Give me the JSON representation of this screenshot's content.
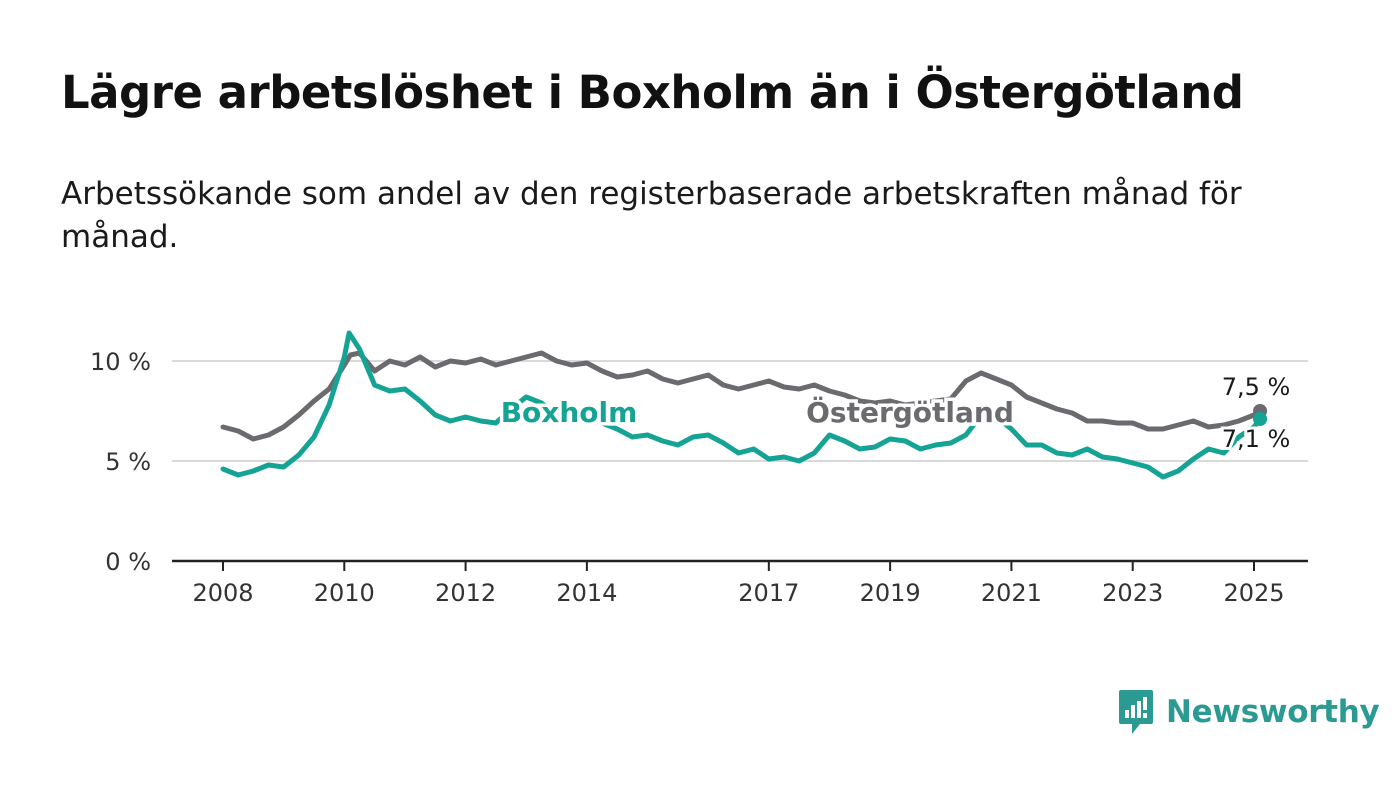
{
  "title": "Lägre arbetslöshet i Boxholm än i Östergötland",
  "subtitle": "Arbetssökande som andel av den registerbaserade arbetskraften månad för månad.",
  "brand": {
    "name": "Newsworthy",
    "icon": "newsworthy-logo-icon",
    "color": "#2a9a92"
  },
  "chart_data": {
    "type": "line",
    "title": "Lägre arbetslöshet i Boxholm än i Östergötland",
    "subtitle": "Arbetssökande som andel av den registerbaserade arbetskraften månad för månad.",
    "xlabel": "",
    "ylabel": "",
    "xlim": [
      2008,
      2025.35
    ],
    "ylim": [
      0,
      11.5
    ],
    "x_ticks": [
      {
        "value": 2008,
        "label": "2008"
      },
      {
        "value": 2010,
        "label": "2010"
      },
      {
        "value": 2012,
        "label": "2012"
      },
      {
        "value": 2014,
        "label": "2014"
      },
      {
        "value": 2017,
        "label": "2017"
      },
      {
        "value": 2019,
        "label": "2019"
      },
      {
        "value": 2021,
        "label": "2021"
      },
      {
        "value": 2023,
        "label": "2023"
      },
      {
        "value": 2025,
        "label": "2025"
      }
    ],
    "y_ticks": [
      {
        "value": 0,
        "label": "0 %"
      },
      {
        "value": 5,
        "label": "5 %"
      },
      {
        "value": 10,
        "label": "10 %"
      }
    ],
    "grid": true,
    "legend": "inline labels",
    "series": [
      {
        "name": "Östergötland",
        "color": "#6b6a6f",
        "end_label": "7,5 %",
        "points": [
          [
            2008.0,
            6.7
          ],
          [
            2008.25,
            6.5
          ],
          [
            2008.5,
            6.1
          ],
          [
            2008.75,
            6.3
          ],
          [
            2009.0,
            6.7
          ],
          [
            2009.25,
            7.3
          ],
          [
            2009.5,
            8.0
          ],
          [
            2009.75,
            8.6
          ],
          [
            2010.0,
            9.8
          ],
          [
            2010.1,
            10.3
          ],
          [
            2010.25,
            10.4
          ],
          [
            2010.5,
            9.5
          ],
          [
            2010.75,
            10.0
          ],
          [
            2011.0,
            9.8
          ],
          [
            2011.25,
            10.2
          ],
          [
            2011.5,
            9.7
          ],
          [
            2011.75,
            10.0
          ],
          [
            2012.0,
            9.9
          ],
          [
            2012.25,
            10.1
          ],
          [
            2012.5,
            9.8
          ],
          [
            2012.75,
            10.0
          ],
          [
            2013.0,
            10.2
          ],
          [
            2013.25,
            10.4
          ],
          [
            2013.5,
            10.0
          ],
          [
            2013.75,
            9.8
          ],
          [
            2014.0,
            9.9
          ],
          [
            2014.25,
            9.5
          ],
          [
            2014.5,
            9.2
          ],
          [
            2014.75,
            9.3
          ],
          [
            2015.0,
            9.5
          ],
          [
            2015.25,
            9.1
          ],
          [
            2015.5,
            8.9
          ],
          [
            2015.75,
            9.1
          ],
          [
            2016.0,
            9.3
          ],
          [
            2016.25,
            8.8
          ],
          [
            2016.5,
            8.6
          ],
          [
            2016.75,
            8.8
          ],
          [
            2017.0,
            9.0
          ],
          [
            2017.25,
            8.7
          ],
          [
            2017.5,
            8.6
          ],
          [
            2017.75,
            8.8
          ],
          [
            2018.0,
            8.5
          ],
          [
            2018.25,
            8.3
          ],
          [
            2018.5,
            8.0
          ],
          [
            2018.75,
            7.9
          ],
          [
            2019.0,
            8.0
          ],
          [
            2019.25,
            7.8
          ],
          [
            2019.5,
            7.9
          ],
          [
            2019.75,
            8.0
          ],
          [
            2020.0,
            8.1
          ],
          [
            2020.25,
            9.0
          ],
          [
            2020.5,
            9.4
          ],
          [
            2020.75,
            9.1
          ],
          [
            2021.0,
            8.8
          ],
          [
            2021.25,
            8.2
          ],
          [
            2021.5,
            7.9
          ],
          [
            2021.75,
            7.6
          ],
          [
            2022.0,
            7.4
          ],
          [
            2022.25,
            7.0
          ],
          [
            2022.5,
            7.0
          ],
          [
            2022.75,
            6.9
          ],
          [
            2023.0,
            6.9
          ],
          [
            2023.25,
            6.6
          ],
          [
            2023.5,
            6.6
          ],
          [
            2023.75,
            6.8
          ],
          [
            2024.0,
            7.0
          ],
          [
            2024.25,
            6.7
          ],
          [
            2024.5,
            6.8
          ],
          [
            2024.75,
            7.0
          ],
          [
            2025.0,
            7.3
          ],
          [
            2025.1,
            7.5
          ]
        ]
      },
      {
        "name": "Boxholm",
        "color": "#14a394",
        "end_label": "7,1 %",
        "points": [
          [
            2008.0,
            4.6
          ],
          [
            2008.25,
            4.3
          ],
          [
            2008.5,
            4.5
          ],
          [
            2008.75,
            4.8
          ],
          [
            2009.0,
            4.7
          ],
          [
            2009.25,
            5.3
          ],
          [
            2009.5,
            6.2
          ],
          [
            2009.75,
            7.8
          ],
          [
            2010.0,
            10.2
          ],
          [
            2010.08,
            11.4
          ],
          [
            2010.25,
            10.6
          ],
          [
            2010.5,
            8.8
          ],
          [
            2010.75,
            8.5
          ],
          [
            2011.0,
            8.6
          ],
          [
            2011.25,
            8.0
          ],
          [
            2011.5,
            7.3
          ],
          [
            2011.75,
            7.0
          ],
          [
            2012.0,
            7.2
          ],
          [
            2012.25,
            7.0
          ],
          [
            2012.5,
            6.9
          ],
          [
            2012.75,
            7.6
          ],
          [
            2013.0,
            8.2
          ],
          [
            2013.25,
            7.9
          ],
          [
            2013.5,
            7.3
          ],
          [
            2013.75,
            7.4
          ],
          [
            2014.0,
            7.2
          ],
          [
            2014.25,
            6.9
          ],
          [
            2014.5,
            6.6
          ],
          [
            2014.75,
            6.2
          ],
          [
            2015.0,
            6.3
          ],
          [
            2015.25,
            6.0
          ],
          [
            2015.5,
            5.8
          ],
          [
            2015.75,
            6.2
          ],
          [
            2016.0,
            6.3
          ],
          [
            2016.25,
            5.9
          ],
          [
            2016.5,
            5.4
          ],
          [
            2016.75,
            5.6
          ],
          [
            2017.0,
            5.1
          ],
          [
            2017.25,
            5.2
          ],
          [
            2017.5,
            5.0
          ],
          [
            2017.75,
            5.4
          ],
          [
            2018.0,
            6.3
          ],
          [
            2018.25,
            6.0
          ],
          [
            2018.5,
            5.6
          ],
          [
            2018.75,
            5.7
          ],
          [
            2019.0,
            6.1
          ],
          [
            2019.25,
            6.0
          ],
          [
            2019.5,
            5.6
          ],
          [
            2019.75,
            5.8
          ],
          [
            2020.0,
            5.9
          ],
          [
            2020.25,
            6.3
          ],
          [
            2020.5,
            7.3
          ],
          [
            2020.75,
            7.2
          ],
          [
            2021.0,
            6.6
          ],
          [
            2021.25,
            5.8
          ],
          [
            2021.5,
            5.8
          ],
          [
            2021.75,
            5.4
          ],
          [
            2022.0,
            5.3
          ],
          [
            2022.25,
            5.6
          ],
          [
            2022.5,
            5.2
          ],
          [
            2022.75,
            5.1
          ],
          [
            2023.0,
            4.9
          ],
          [
            2023.25,
            4.7
          ],
          [
            2023.5,
            4.2
          ],
          [
            2023.75,
            4.5
          ],
          [
            2024.0,
            5.1
          ],
          [
            2024.25,
            5.6
          ],
          [
            2024.5,
            5.4
          ],
          [
            2024.75,
            6.2
          ],
          [
            2025.0,
            6.7
          ],
          [
            2025.1,
            7.1
          ]
        ]
      }
    ],
    "annotations": [
      {
        "text": "Boxholm",
        "series": "Boxholm",
        "x": 2013.75,
        "y": 7.5
      },
      {
        "text": "Östergötland",
        "series": "Östergötland",
        "x": 2019.4,
        "y": 7.6
      }
    ]
  }
}
